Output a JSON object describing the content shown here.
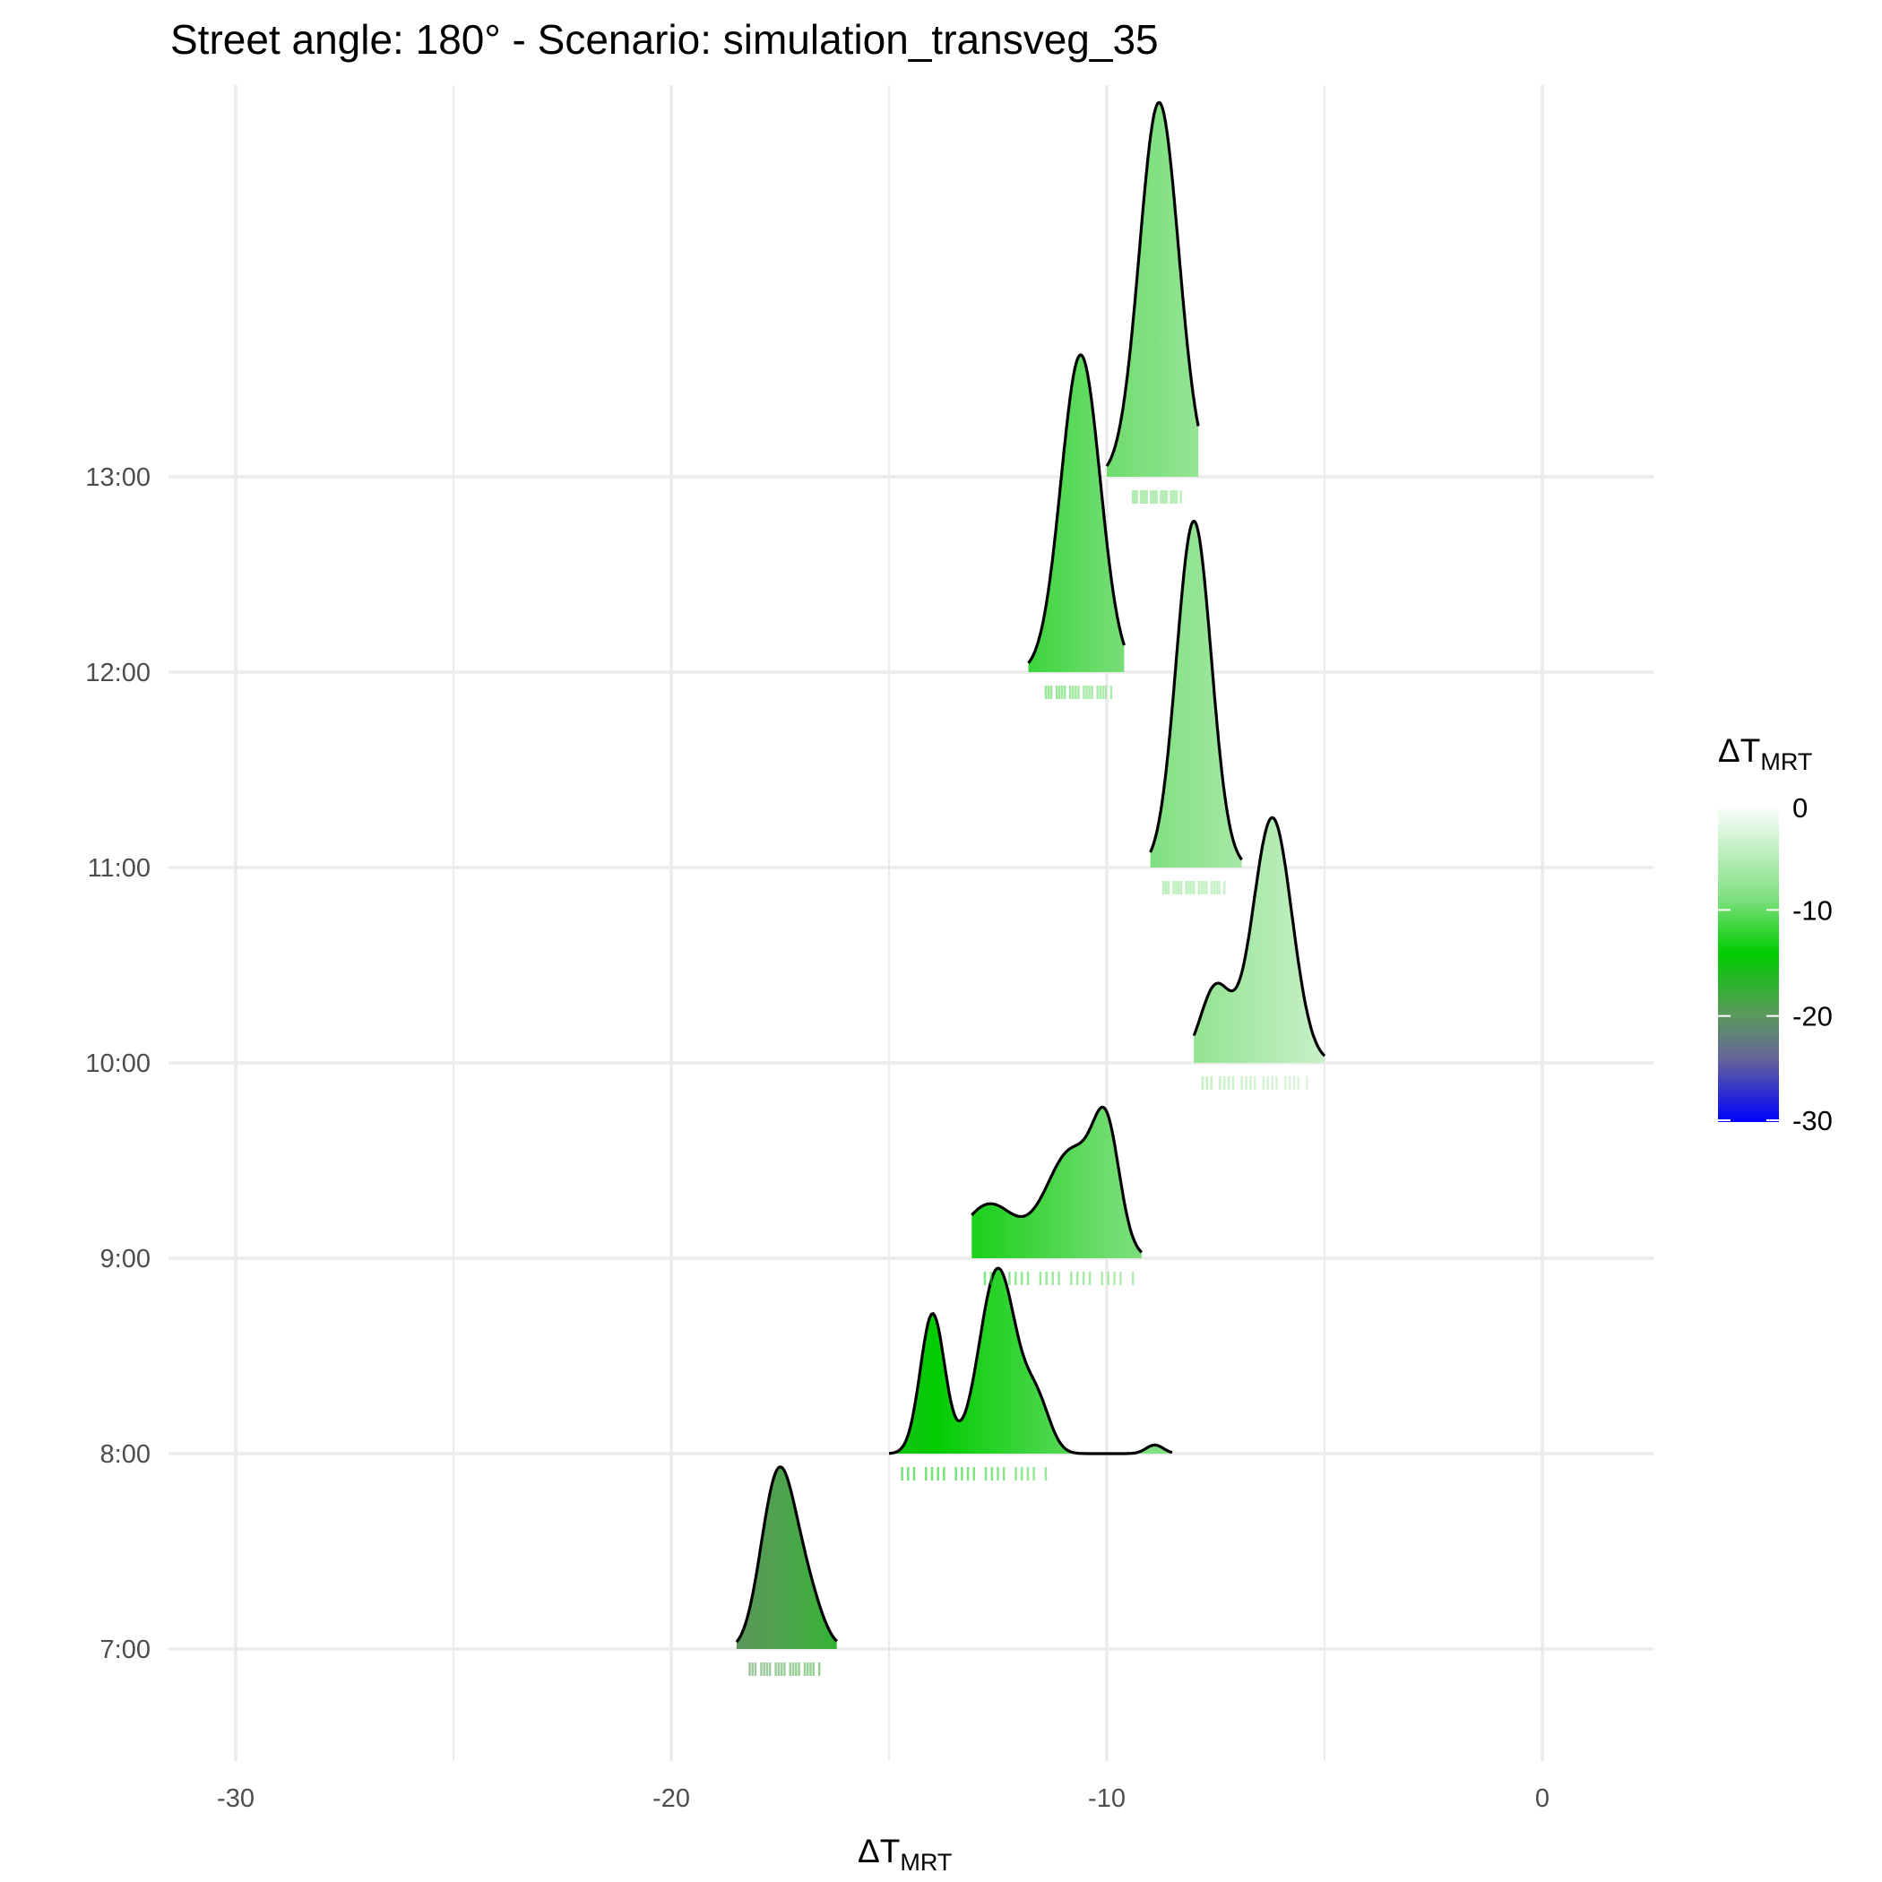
{
  "chart_data": {
    "type": "ridgeline",
    "title": "Street angle: 180° - Scenario: simulation_transveg_35",
    "xlabel": {
      "main": "ΔT",
      "sub": "MRT"
    },
    "ylabel": "",
    "xlim": [
      -33,
      2.5
    ],
    "x_ticks": [
      -30,
      -20,
      -10,
      0
    ],
    "x_tick_labels": [
      "-30",
      "-20",
      "-10",
      "0"
    ],
    "x_minor_ticks": [
      -25,
      -15,
      -5
    ],
    "categories": [
      "7:00",
      "8:00",
      "9:00",
      "10:00",
      "11:00",
      "12:00",
      "13:00"
    ],
    "grid": true,
    "legend": {
      "title": {
        "main": "ΔT",
        "sub": "MRT"
      },
      "position": "right",
      "ticks": [
        "0",
        "-10",
        "-20",
        "-30"
      ],
      "tick_values": [
        0,
        -10,
        -20,
        -30
      ],
      "colors": [
        "#ffffff",
        "#00cc00",
        "#808080",
        "#0000ff"
      ],
      "color_stops": [
        0,
        -14,
        -20,
        -30
      ]
    },
    "series": [
      {
        "category": "7:00",
        "peaks": [
          {
            "x": -17.5,
            "h": 1.45,
            "s": 0.35
          },
          {
            "x": -16.9,
            "h": 0.52,
            "s": 0.35
          },
          {
            "x": -17.9,
            "h": 0.3,
            "s": 0.3
          }
        ],
        "range": [
          -18.5,
          -16.2
        ],
        "rug": [
          -18.2,
          -16.6
        ]
      },
      {
        "category": "8:00",
        "peaks": [
          {
            "x": -14.0,
            "h": 1.3,
            "s": 0.28
          },
          {
            "x": -12.5,
            "h": 1.72,
            "s": 0.42
          },
          {
            "x": -11.6,
            "h": 0.45,
            "s": 0.3
          },
          {
            "x": -8.9,
            "h": 0.08,
            "s": 0.2
          }
        ],
        "range": [
          -15.0,
          -8.5
        ],
        "rug": [
          -14.7,
          -11.4
        ]
      },
      {
        "category": "9:00",
        "peaks": [
          {
            "x": -12.7,
            "h": 0.5,
            "s": 0.6
          },
          {
            "x": -10.8,
            "h": 1.0,
            "s": 0.6
          },
          {
            "x": -10.0,
            "h": 0.95,
            "s": 0.3
          }
        ],
        "range": [
          -13.1,
          -9.2
        ],
        "rug": [
          -12.8,
          -9.4
        ]
      },
      {
        "category": "10:00",
        "peaks": [
          {
            "x": -7.5,
            "h": 0.7,
            "s": 0.35
          },
          {
            "x": -6.2,
            "h": 2.28,
            "s": 0.45
          }
        ],
        "range": [
          -8.0,
          -5.0
        ],
        "rug": [
          -7.8,
          -5.4
        ]
      },
      {
        "category": "11:00",
        "peaks": [
          {
            "x": -8.0,
            "h": 3.22,
            "s": 0.4
          }
        ],
        "range": [
          -9.0,
          -6.9
        ],
        "rug": [
          -8.7,
          -7.3
        ]
      },
      {
        "category": "12:00",
        "peaks": [
          {
            "x": -10.6,
            "h": 2.95,
            "s": 0.45
          }
        ],
        "range": [
          -11.8,
          -9.6
        ],
        "rug": [
          -11.4,
          -9.9
        ]
      },
      {
        "category": "13:00",
        "peaks": [
          {
            "x": -8.8,
            "h": 3.48,
            "s": 0.45
          }
        ],
        "range": [
          -10.0,
          -7.9
        ],
        "rug": [
          -9.4,
          -8.3
        ]
      }
    ]
  }
}
